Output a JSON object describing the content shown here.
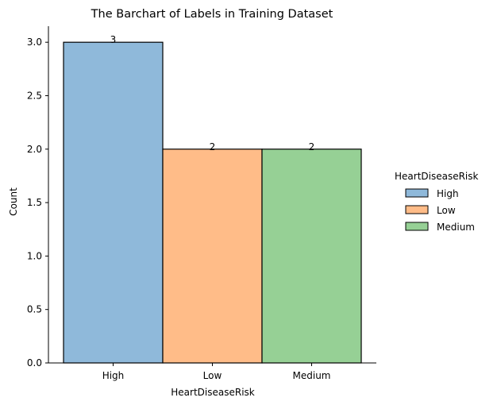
{
  "chart_data": {
    "type": "bar",
    "title": "The Barchart of Labels in Training Dataset",
    "xlabel": "HeartDiseaseRisk",
    "ylabel": "Count",
    "categories": [
      "High",
      "Low",
      "Medium"
    ],
    "values": [
      3,
      2,
      2
    ],
    "data_labels": [
      "3",
      "2",
      "2"
    ],
    "colors": [
      "#8fb9da",
      "#ffbc88",
      "#96d095"
    ],
    "ylim": [
      0,
      3.15
    ],
    "yticks": [
      0.0,
      0.5,
      1.0,
      1.5,
      2.0,
      2.5,
      3.0
    ],
    "ytick_labels": [
      "0.0",
      "0.5",
      "1.0",
      "1.5",
      "2.0",
      "2.5",
      "3.0"
    ],
    "grid": false,
    "legend": {
      "title": "HeartDiseaseRisk",
      "placement": "right",
      "entries": [
        "High",
        "Low",
        "Medium"
      ]
    }
  }
}
